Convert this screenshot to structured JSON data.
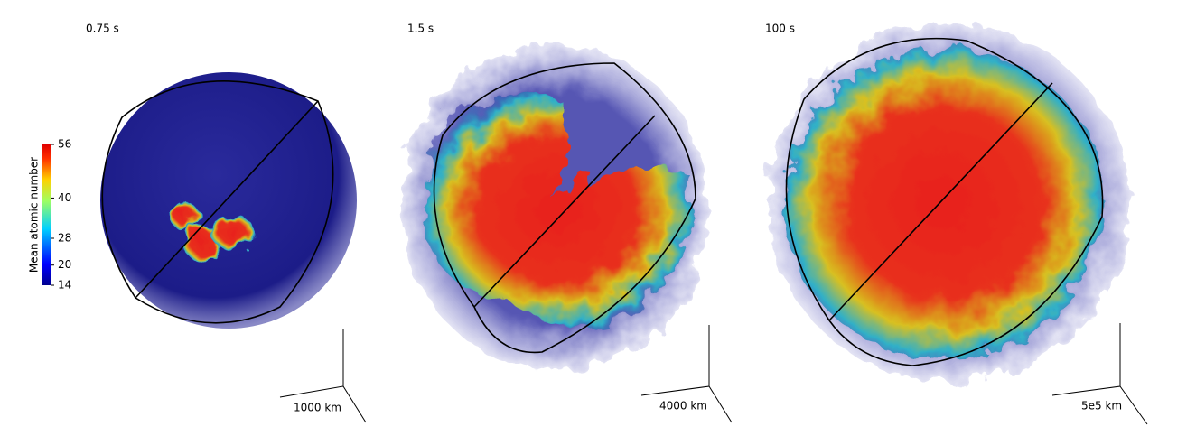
{
  "panels": [
    {
      "time": "0.75 s",
      "scale": "1000 km"
    },
    {
      "time": "1.5 s",
      "scale": "4000 km"
    },
    {
      "time": "100 s",
      "scale": "5e5 km"
    }
  ],
  "colorbar": {
    "label": "Mean atomic number",
    "range": [
      14,
      56
    ],
    "ticks": [
      14,
      20,
      28,
      40,
      56
    ]
  }
}
